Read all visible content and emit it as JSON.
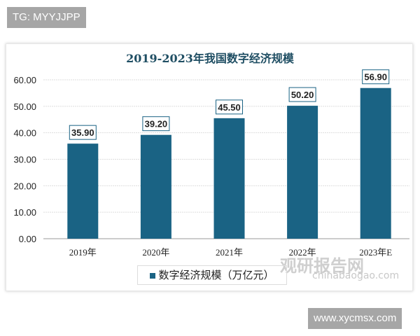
{
  "overlay": {
    "top_tag": "TG: MYYJJPP",
    "bottom_tag": "www.xycmsx.com",
    "watermark": "观研报告网",
    "watermark_sub": "chinabaogao.com"
  },
  "chart_data": {
    "type": "bar",
    "title": "2019-2023年我国数字经济规模",
    "categories": [
      "2019年",
      "2020年",
      "2021年",
      "2022年",
      "2023年E"
    ],
    "series": [
      {
        "name": "数字经济规模（万亿元）",
        "values": [
          35.9,
          39.2,
          45.5,
          50.2,
          56.9
        ],
        "color": "#1a6384"
      }
    ],
    "data_labels": [
      "35.90",
      "39.20",
      "45.50",
      "50.20",
      "56.90"
    ],
    "yticks": [
      "0.00",
      "10.00",
      "20.00",
      "30.00",
      "40.00",
      "50.00",
      "60.00"
    ],
    "ylim": [
      0,
      60
    ],
    "grid": true,
    "legend": "bottom-left"
  }
}
